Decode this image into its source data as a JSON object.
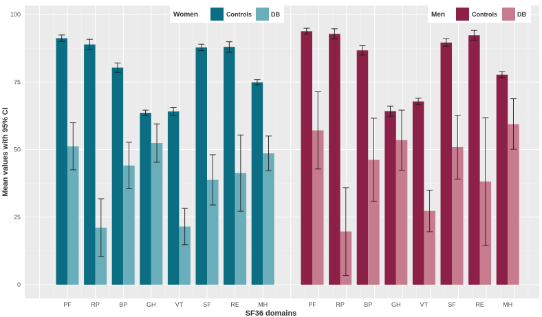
{
  "chart_data": {
    "type": "bar",
    "ylabel": "Mean values with 95% CI",
    "xlabel": "SF36 domains",
    "ylim": [
      0,
      100
    ],
    "yticks": [
      0,
      25,
      50,
      75,
      100
    ],
    "grid": true,
    "groups": [
      {
        "name": "Women",
        "categories": [
          "PF",
          "RP",
          "BP",
          "GH",
          "VT",
          "SF",
          "RE",
          "MH"
        ],
        "series": [
          {
            "name": "Controls",
            "color": "#0c6e82",
            "values": [
              91.2,
              88.9,
              80.3,
              63.6,
              64.1,
              87.8,
              88.0,
              74.9
            ],
            "ci_low": [
              90.0,
              87.0,
              78.6,
              62.6,
              62.7,
              86.6,
              86.0,
              73.9
            ],
            "ci_high": [
              92.4,
              90.8,
              82.0,
              64.6,
              65.5,
              89.0,
              89.9,
              75.9
            ]
          },
          {
            "name": "DB",
            "color": "#6aaebc",
            "values": [
              51.2,
              21.1,
              44.1,
              52.4,
              21.5,
              38.8,
              41.3,
              48.6
            ],
            "ci_low": [
              42.5,
              10.4,
              35.5,
              45.3,
              14.8,
              29.5,
              27.2,
              42.2
            ],
            "ci_high": [
              59.9,
              31.8,
              52.7,
              59.5,
              28.2,
              48.1,
              55.4,
              55.0
            ]
          }
        ]
      },
      {
        "name": "Men",
        "categories": [
          "PF",
          "RP",
          "BP",
          "GH",
          "VT",
          "SF",
          "RE",
          "MH"
        ],
        "series": [
          {
            "name": "Controls",
            "color": "#8c2046",
            "values": [
              93.8,
              92.8,
              86.7,
              64.2,
              67.8,
              89.6,
              92.3,
              77.7
            ],
            "ci_low": [
              92.7,
              90.9,
              85.0,
              62.3,
              66.6,
              88.2,
              90.5,
              76.6
            ],
            "ci_high": [
              94.9,
              94.7,
              88.4,
              66.1,
              69.0,
              91.0,
              94.1,
              78.8
            ]
          },
          {
            "name": "DB",
            "color": "#c77b8f",
            "values": [
              57.1,
              19.7,
              46.2,
              53.5,
              27.3,
              50.9,
              38.2,
              59.4
            ],
            "ci_low": [
              42.8,
              3.4,
              30.8,
              42.4,
              19.6,
              39.1,
              14.5,
              50.1
            ],
            "ci_high": [
              71.4,
              35.9,
              61.6,
              64.6,
              35.0,
              62.7,
              61.8,
              68.8
            ]
          }
        ]
      }
    ]
  }
}
